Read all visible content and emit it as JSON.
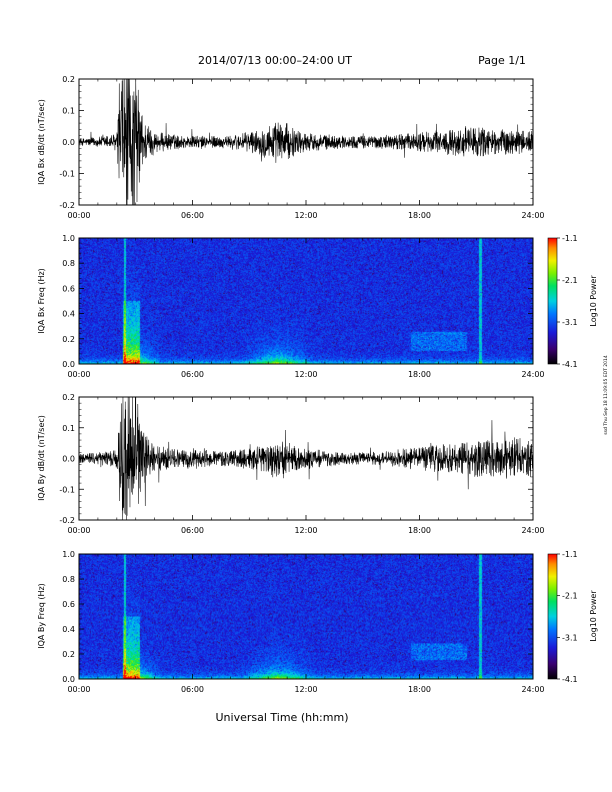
{
  "header": {
    "date_range": "2014/07/13  00:00–24:00 UT",
    "page": "Page 1/1"
  },
  "footer": {
    "xlabel": "Universal Time (hh:mm)"
  },
  "side_note": "ssd Thu Sep 18 11:09:05 EDT 2014",
  "chart_data": [
    {
      "type": "line",
      "ylabel": "IQA Bx dB/dt (nT/sec)",
      "xlim": [
        "00:00",
        "24:00"
      ],
      "xticks": [
        "00:00",
        "06:00",
        "12:00",
        "18:00",
        "24:00"
      ],
      "ylim": [
        -0.2,
        0.2
      ],
      "yticks": [
        "-0.2",
        "-0.1",
        "0.0",
        "0.1",
        "0.2"
      ],
      "noise_envelope": {
        "hours": [
          0,
          1,
          2,
          2.3,
          2.6,
          3.0,
          3.4,
          4,
          5.5,
          8,
          9.5,
          10,
          10.5,
          11,
          11.5,
          12,
          14,
          16,
          18,
          20,
          21,
          22,
          23,
          24
        ],
        "amplitude": [
          0.012,
          0.016,
          0.03,
          0.25,
          0.25,
          0.22,
          0.08,
          0.035,
          0.02,
          0.02,
          0.04,
          0.06,
          0.07,
          0.06,
          0.04,
          0.03,
          0.02,
          0.022,
          0.03,
          0.045,
          0.05,
          0.04,
          0.04,
          0.035
        ]
      }
    },
    {
      "type": "heatmap",
      "ylabel": "IQA Bx Freq (Hz)",
      "xlim": [
        "00:00",
        "24:00"
      ],
      "xticks": [
        "00:00",
        "06:00",
        "12:00",
        "18:00",
        "24:00"
      ],
      "ylim": [
        0.0,
        1.0
      ],
      "yticks": [
        "0.0",
        "0.2",
        "0.4",
        "0.6",
        "0.8",
        "1.0"
      ],
      "colorbar": {
        "label": "Log10 Power",
        "range": [
          -4.1,
          -1.1
        ],
        "ticks": [
          "-1.1",
          "-2.1",
          "-3.1",
          "-4.1"
        ]
      },
      "features": {
        "event_hours": [
          2.3,
          3.2
        ],
        "event_max_freq": 0.5,
        "daytime_hours": [
          8.5,
          12.5
        ],
        "evening_hours": [
          17.5,
          20.5
        ],
        "evening_freq_band": [
          0.1,
          0.25
        ],
        "vertical_line_hours": [
          2.4,
          21.2
        ]
      }
    },
    {
      "type": "line",
      "ylabel": "IQA By dB/dt (nT/sec)",
      "xlim": [
        "00:00",
        "24:00"
      ],
      "xticks": [
        "00:00",
        "06:00",
        "12:00",
        "18:00",
        "24:00"
      ],
      "ylim": [
        -0.2,
        0.2
      ],
      "yticks": [
        "-0.2",
        "-0.1",
        "0.0",
        "0.1",
        "0.2"
      ],
      "noise_envelope": {
        "hours": [
          0,
          1,
          2,
          2.3,
          2.6,
          3.0,
          3.4,
          4,
          5.5,
          8,
          9.5,
          10,
          10.5,
          11,
          11.5,
          12,
          14,
          16,
          18,
          20,
          21,
          22,
          23,
          24
        ],
        "amplitude": [
          0.015,
          0.02,
          0.03,
          0.25,
          0.25,
          0.22,
          0.09,
          0.045,
          0.03,
          0.025,
          0.04,
          0.05,
          0.06,
          0.05,
          0.04,
          0.035,
          0.02,
          0.022,
          0.04,
          0.05,
          0.06,
          0.06,
          0.07,
          0.06
        ]
      }
    },
    {
      "type": "heatmap",
      "ylabel": "IQA By Freq (Hz)",
      "xlim": [
        "00:00",
        "24:00"
      ],
      "xticks": [
        "00:00",
        "06:00",
        "12:00",
        "18:00",
        "24:00"
      ],
      "ylim": [
        0.0,
        1.0
      ],
      "yticks": [
        "0.0",
        "0.2",
        "0.4",
        "0.6",
        "0.8",
        "1.0"
      ],
      "colorbar": {
        "label": "Log10 Power",
        "range": [
          -4.1,
          -1.1
        ],
        "ticks": [
          "-1.1",
          "-2.1",
          "-3.1",
          "-4.1"
        ]
      },
      "features": {
        "event_hours": [
          2.3,
          3.2
        ],
        "event_max_freq": 0.5,
        "daytime_hours": [
          8.5,
          12.5
        ],
        "evening_hours": [
          17.5,
          20.5
        ],
        "evening_freq_band": [
          0.15,
          0.28
        ],
        "vertical_line_hours": [
          2.4,
          21.2
        ]
      }
    }
  ]
}
